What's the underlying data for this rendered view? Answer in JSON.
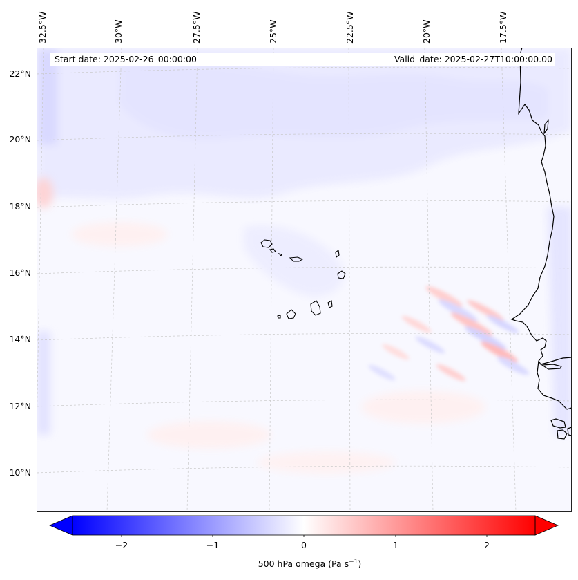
{
  "map": {
    "start_date": "Start date: 2025-02-26_00:00:00",
    "valid_date": "Valid_date: 2025-02-27T10:00:00.00",
    "longitude_labels": [
      "32.5°W",
      "30°W",
      "27.5°W",
      "25°W",
      "22.5°W",
      "20°W",
      "17.5°W"
    ],
    "latitude_labels": [
      "22°N",
      "20°N",
      "18°N",
      "16°N",
      "14°N",
      "12°N",
      "10°N"
    ],
    "colors": {
      "background": "#f8f8ff",
      "negative": "#0000ff",
      "positive": "#ff0000",
      "coastline": "#000000",
      "gridline": "#c8c8c8"
    }
  },
  "colorbar": {
    "title_prefix": "500 hPa omega (Pa s",
    "title_exponent": "−1",
    "title_suffix": ")",
    "tick_labels": [
      "−2",
      "−1",
      "0",
      "1",
      "2"
    ],
    "tick_values": [
      -2,
      -1,
      0,
      1,
      2
    ],
    "range": [
      -2.6,
      2.6
    ],
    "colormap": "bwr",
    "extend": "both"
  }
}
